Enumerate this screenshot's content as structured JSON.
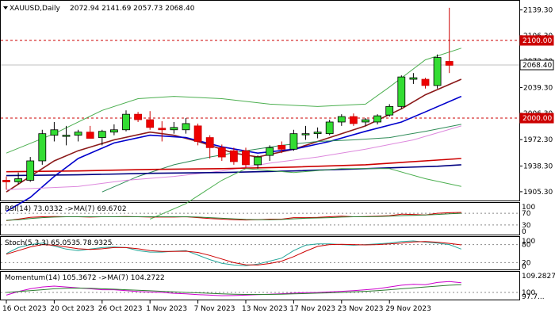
{
  "chart_data": [
    {
      "type": "candlestick",
      "panel": "price",
      "symbol_label": "XAUUSD,Daily",
      "ohlc_readout": "2072.94 2141.69 2057.73 2068.40",
      "ylim": [
        1895,
        2150
      ],
      "y_ticks": [
        "2139.30",
        "2106.30",
        "2073.30",
        "2039.30",
        "2006.30",
        "1972.30",
        "1938.30",
        "1905.30"
      ],
      "price_tags": [
        {
          "value": 2100,
          "label": "2100.00",
          "line": "dashed-red"
        },
        {
          "value": 2068.4,
          "label": "2068.40",
          "line": "current"
        },
        {
          "value": 2000,
          "label": "2000.00",
          "line": "dashed-red"
        }
      ],
      "x_labels": [
        "16 Oct 2023",
        "20 Oct 2023",
        "26 Oct 2023",
        "1 Nov 2023",
        "7 Nov 2023",
        "13 Nov 2023",
        "17 Nov 2023",
        "23 Nov 2023",
        "29 Nov 2023"
      ],
      "x_label_bars": [
        0,
        4,
        8,
        12,
        16,
        20,
        24,
        28,
        32
      ],
      "candles": [
        {
          "o": 1920,
          "h": 1925,
          "l": 1908,
          "c": 1918
        },
        {
          "o": 1918,
          "h": 1930,
          "l": 1915,
          "c": 1922
        },
        {
          "o": 1920,
          "h": 1950,
          "l": 1918,
          "c": 1945
        },
        {
          "o": 1945,
          "h": 1985,
          "l": 1940,
          "c": 1980
        },
        {
          "o": 1978,
          "h": 1995,
          "l": 1970,
          "c": 1985
        },
        {
          "o": 1978,
          "h": 1990,
          "l": 1965,
          "c": 1978
        },
        {
          "o": 1978,
          "h": 1985,
          "l": 1970,
          "c": 1982
        },
        {
          "o": 1982,
          "h": 1990,
          "l": 1974,
          "c": 1974
        },
        {
          "o": 1975,
          "h": 1985,
          "l": 1965,
          "c": 1983
        },
        {
          "o": 1982,
          "h": 1992,
          "l": 1978,
          "c": 1985
        },
        {
          "o": 1985,
          "h": 2010,
          "l": 1983,
          "c": 2005
        },
        {
          "o": 2005,
          "h": 2008,
          "l": 1995,
          "c": 1998
        },
        {
          "o": 1998,
          "h": 2009,
          "l": 1985,
          "c": 1988
        },
        {
          "o": 1987,
          "h": 1996,
          "l": 1970,
          "c": 1985
        },
        {
          "o": 1985,
          "h": 1995,
          "l": 1980,
          "c": 1988
        },
        {
          "o": 1985,
          "h": 2000,
          "l": 1980,
          "c": 1993
        },
        {
          "o": 1990,
          "h": 1993,
          "l": 1965,
          "c": 1970
        },
        {
          "o": 1975,
          "h": 1978,
          "l": 1948,
          "c": 1962
        },
        {
          "o": 1962,
          "h": 1966,
          "l": 1945,
          "c": 1950
        },
        {
          "o": 1958,
          "h": 1962,
          "l": 1940,
          "c": 1944
        },
        {
          "o": 1958,
          "h": 1962,
          "l": 1935,
          "c": 1940
        },
        {
          "o": 1940,
          "h": 1952,
          "l": 1935,
          "c": 1950
        },
        {
          "o": 1952,
          "h": 1965,
          "l": 1945,
          "c": 1962
        },
        {
          "o": 1965,
          "h": 1970,
          "l": 1955,
          "c": 1960
        },
        {
          "o": 1960,
          "h": 1985,
          "l": 1958,
          "c": 1980
        },
        {
          "o": 1980,
          "h": 1990,
          "l": 1972,
          "c": 1980
        },
        {
          "o": 1980,
          "h": 1988,
          "l": 1974,
          "c": 1982
        },
        {
          "o": 1980,
          "h": 1998,
          "l": 1978,
          "c": 1995
        },
        {
          "o": 1995,
          "h": 2005,
          "l": 1990,
          "c": 2002
        },
        {
          "o": 2002,
          "h": 2006,
          "l": 1990,
          "c": 1993
        },
        {
          "o": 1995,
          "h": 2000,
          "l": 1990,
          "c": 1998
        },
        {
          "o": 1995,
          "h": 2005,
          "l": 1992,
          "c": 2003
        },
        {
          "o": 2004,
          "h": 2018,
          "l": 2002,
          "c": 2015
        },
        {
          "o": 2015,
          "h": 2055,
          "l": 2012,
          "c": 2053
        },
        {
          "o": 2050,
          "h": 2058,
          "l": 2044,
          "c": 2052
        },
        {
          "o": 2050,
          "h": 2052,
          "l": 2038,
          "c": 2042
        },
        {
          "o": 2042,
          "h": 2082,
          "l": 2038,
          "c": 2078
        },
        {
          "o": 2073,
          "h": 2142,
          "l": 2058,
          "c": 2068
        }
      ],
      "overlays": [
        {
          "color": "#8b1a1a",
          "points": [
            [
              0,
              1905
            ],
            [
              2,
              1925
            ],
            [
              4,
              1945
            ],
            [
              6,
              1958
            ],
            [
              9,
              1972
            ],
            [
              12,
              1982
            ],
            [
              14,
              1978
            ],
            [
              16,
              1970
            ],
            [
              19,
              1955
            ],
            [
              21,
              1950
            ],
            [
              24,
              1960
            ],
            [
              27,
              1975
            ],
            [
              30,
              1990
            ],
            [
              33,
              2012
            ],
            [
              35,
              2030
            ],
            [
              38,
              2050
            ]
          ]
        },
        {
          "color": "#0000cc",
          "points": [
            [
              0,
              1880
            ],
            [
              2,
              1898
            ],
            [
              4,
              1925
            ],
            [
              6,
              1948
            ],
            [
              9,
              1968
            ],
            [
              12,
              1978
            ],
            [
              15,
              1975
            ],
            [
              18,
              1963
            ],
            [
              21,
              1955
            ],
            [
              24,
              1960
            ],
            [
              27,
              1970
            ],
            [
              30,
              1983
            ],
            [
              33,
              1995
            ],
            [
              35,
              2008
            ],
            [
              38,
              2028
            ]
          ]
        },
        {
          "color": "#2e8b57",
          "points": [
            [
              8,
              1905
            ],
            [
              11,
              1925
            ],
            [
              14,
              1940
            ],
            [
              17,
              1950
            ],
            [
              20,
              1958
            ],
            [
              23,
              1965
            ],
            [
              26,
              1970
            ],
            [
              29,
              1972
            ],
            [
              32,
              1975
            ],
            [
              35,
              1983
            ],
            [
              38,
              1992
            ]
          ]
        },
        {
          "color": "#dd88dd",
          "points": [
            [
              0,
              1908
            ],
            [
              6,
              1912
            ],
            [
              10,
              1920
            ],
            [
              14,
              1925
            ],
            [
              18,
              1932
            ],
            [
              22,
              1942
            ],
            [
              26,
              1950
            ],
            [
              30,
              1960
            ],
            [
              34,
              1972
            ],
            [
              38,
              1990
            ]
          ]
        },
        {
          "color": "#cc0000",
          "points": [
            [
              0,
              1931
            ],
            [
              6,
              1932
            ],
            [
              12,
              1934
            ],
            [
              18,
              1935
            ],
            [
              24,
              1937
            ],
            [
              30,
              1940
            ],
            [
              36,
              1946
            ],
            [
              38,
              1948
            ]
          ]
        },
        {
          "color": "#000080",
          "points": [
            [
              0,
              1926
            ],
            [
              6,
              1927
            ],
            [
              12,
              1929
            ],
            [
              18,
              1930
            ],
            [
              24,
              1932
            ],
            [
              30,
              1935
            ],
            [
              36,
              1938
            ],
            [
              38,
              1940
            ]
          ]
        },
        {
          "color": "#4caf50",
          "points": [
            [
              0,
              1955
            ],
            [
              4,
              1980
            ],
            [
              8,
              2010
            ],
            [
              11,
              2025
            ],
            [
              14,
              2028
            ],
            [
              18,
              2025
            ],
            [
              22,
              2018
            ],
            [
              26,
              2015
            ],
            [
              30,
              2018
            ],
            [
              32,
              2040
            ],
            [
              35,
              2075
            ],
            [
              38,
              2090
            ]
          ]
        },
        {
          "color": "#4caf50",
          "points": [
            [
              12,
              1870
            ],
            [
              15,
              1890
            ],
            [
              18,
              1920
            ],
            [
              20,
              1935
            ],
            [
              24,
              1930
            ],
            [
              28,
              1935
            ],
            [
              32,
              1935
            ],
            [
              35,
              1922
            ],
            [
              38,
              1912
            ]
          ]
        }
      ]
    },
    {
      "type": "line",
      "panel": "rsi",
      "label": "RSI(14) 73.0332 ->MA(7) 69.6702",
      "ylim": [
        0,
        100
      ],
      "y_ticks": [
        "100",
        "70",
        "30",
        "0"
      ],
      "dashed_levels": [
        70,
        30
      ],
      "series": [
        {
          "color": "#cc0000",
          "values": [
            45,
            50,
            56,
            58,
            59,
            58,
            58,
            57,
            58,
            58,
            59,
            58,
            57,
            57,
            57,
            58,
            55,
            52,
            50,
            48,
            47,
            48,
            50,
            50,
            55,
            55,
            56,
            58,
            60,
            58,
            59,
            60,
            62,
            67,
            66,
            64,
            70,
            72,
            73
          ]
        },
        {
          "color": "#2e7d32",
          "values": [
            46,
            48,
            52,
            55,
            57,
            58,
            58,
            58,
            58,
            58,
            58,
            58,
            58,
            58,
            58,
            58,
            57,
            55,
            53,
            51,
            49,
            48,
            48,
            49,
            51,
            53,
            54,
            55,
            57,
            58,
            58,
            59,
            60,
            62,
            63,
            64,
            66,
            68,
            70
          ]
        }
      ]
    },
    {
      "type": "line",
      "panel": "stochastic",
      "label": "Stoch(5,3,3) 65.0535 78.9325",
      "ylim": [
        0,
        100
      ],
      "y_ticks": [
        "100",
        "80",
        "20",
        "0"
      ],
      "dashed_levels": [
        80,
        20
      ],
      "series": [
        {
          "color": "#26a69a",
          "values": [
            50,
            70,
            80,
            85,
            75,
            65,
            60,
            65,
            70,
            72,
            70,
            60,
            55,
            55,
            58,
            60,
            45,
            30,
            18,
            12,
            10,
            15,
            25,
            35,
            60,
            78,
            82,
            82,
            80,
            78,
            80,
            82,
            85,
            90,
            92,
            88,
            85,
            80,
            65
          ]
        },
        {
          "color": "#cc0000",
          "values": [
            48,
            60,
            72,
            80,
            78,
            72,
            66,
            64,
            66,
            70,
            70,
            66,
            60,
            57,
            57,
            58,
            54,
            44,
            32,
            20,
            13,
            12,
            17,
            25,
            40,
            58,
            74,
            80,
            81,
            80,
            79,
            80,
            82,
            85,
            89,
            90,
            88,
            84,
            79
          ]
        }
      ]
    },
    {
      "type": "line",
      "panel": "momentum",
      "label": "Momentum(14) 105.3672 ->MA(7) 104.2722",
      "ylim": [
        96.5,
        110.5
      ],
      "y_ticks": [
        "109.2827",
        "100",
        "97.7..."
      ],
      "level": 100,
      "series": [
        {
          "color": "#cc00cc",
          "values": [
            98.5,
            100.5,
            102.0,
            103.0,
            103.5,
            103.0,
            102.5,
            102.0,
            101.5,
            101.5,
            101.0,
            100.5,
            100.2,
            100.0,
            99.5,
            99.2,
            98.8,
            98.5,
            98.2,
            98.3,
            98.5,
            98.8,
            99.0,
            99.3,
            99.6,
            99.9,
            100.0,
            100.3,
            100.6,
            101.0,
            101.5,
            102.0,
            103.0,
            104.0,
            104.5,
            104.3,
            105.5,
            106.0,
            105.4
          ]
        },
        {
          "color": "#2e7d32",
          "values": [
            100.0,
            100.5,
            101.0,
            101.5,
            102.0,
            102.3,
            102.4,
            102.3,
            102.0,
            101.8,
            101.5,
            101.2,
            100.9,
            100.6,
            100.3,
            100.0,
            99.8,
            99.5,
            99.2,
            99.0,
            98.9,
            98.9,
            98.9,
            99.0,
            99.2,
            99.4,
            99.6,
            99.8,
            100.0,
            100.3,
            100.6,
            101.0,
            101.5,
            102.0,
            102.5,
            103.0,
            103.5,
            104.0,
            104.3
          ]
        }
      ]
    }
  ]
}
